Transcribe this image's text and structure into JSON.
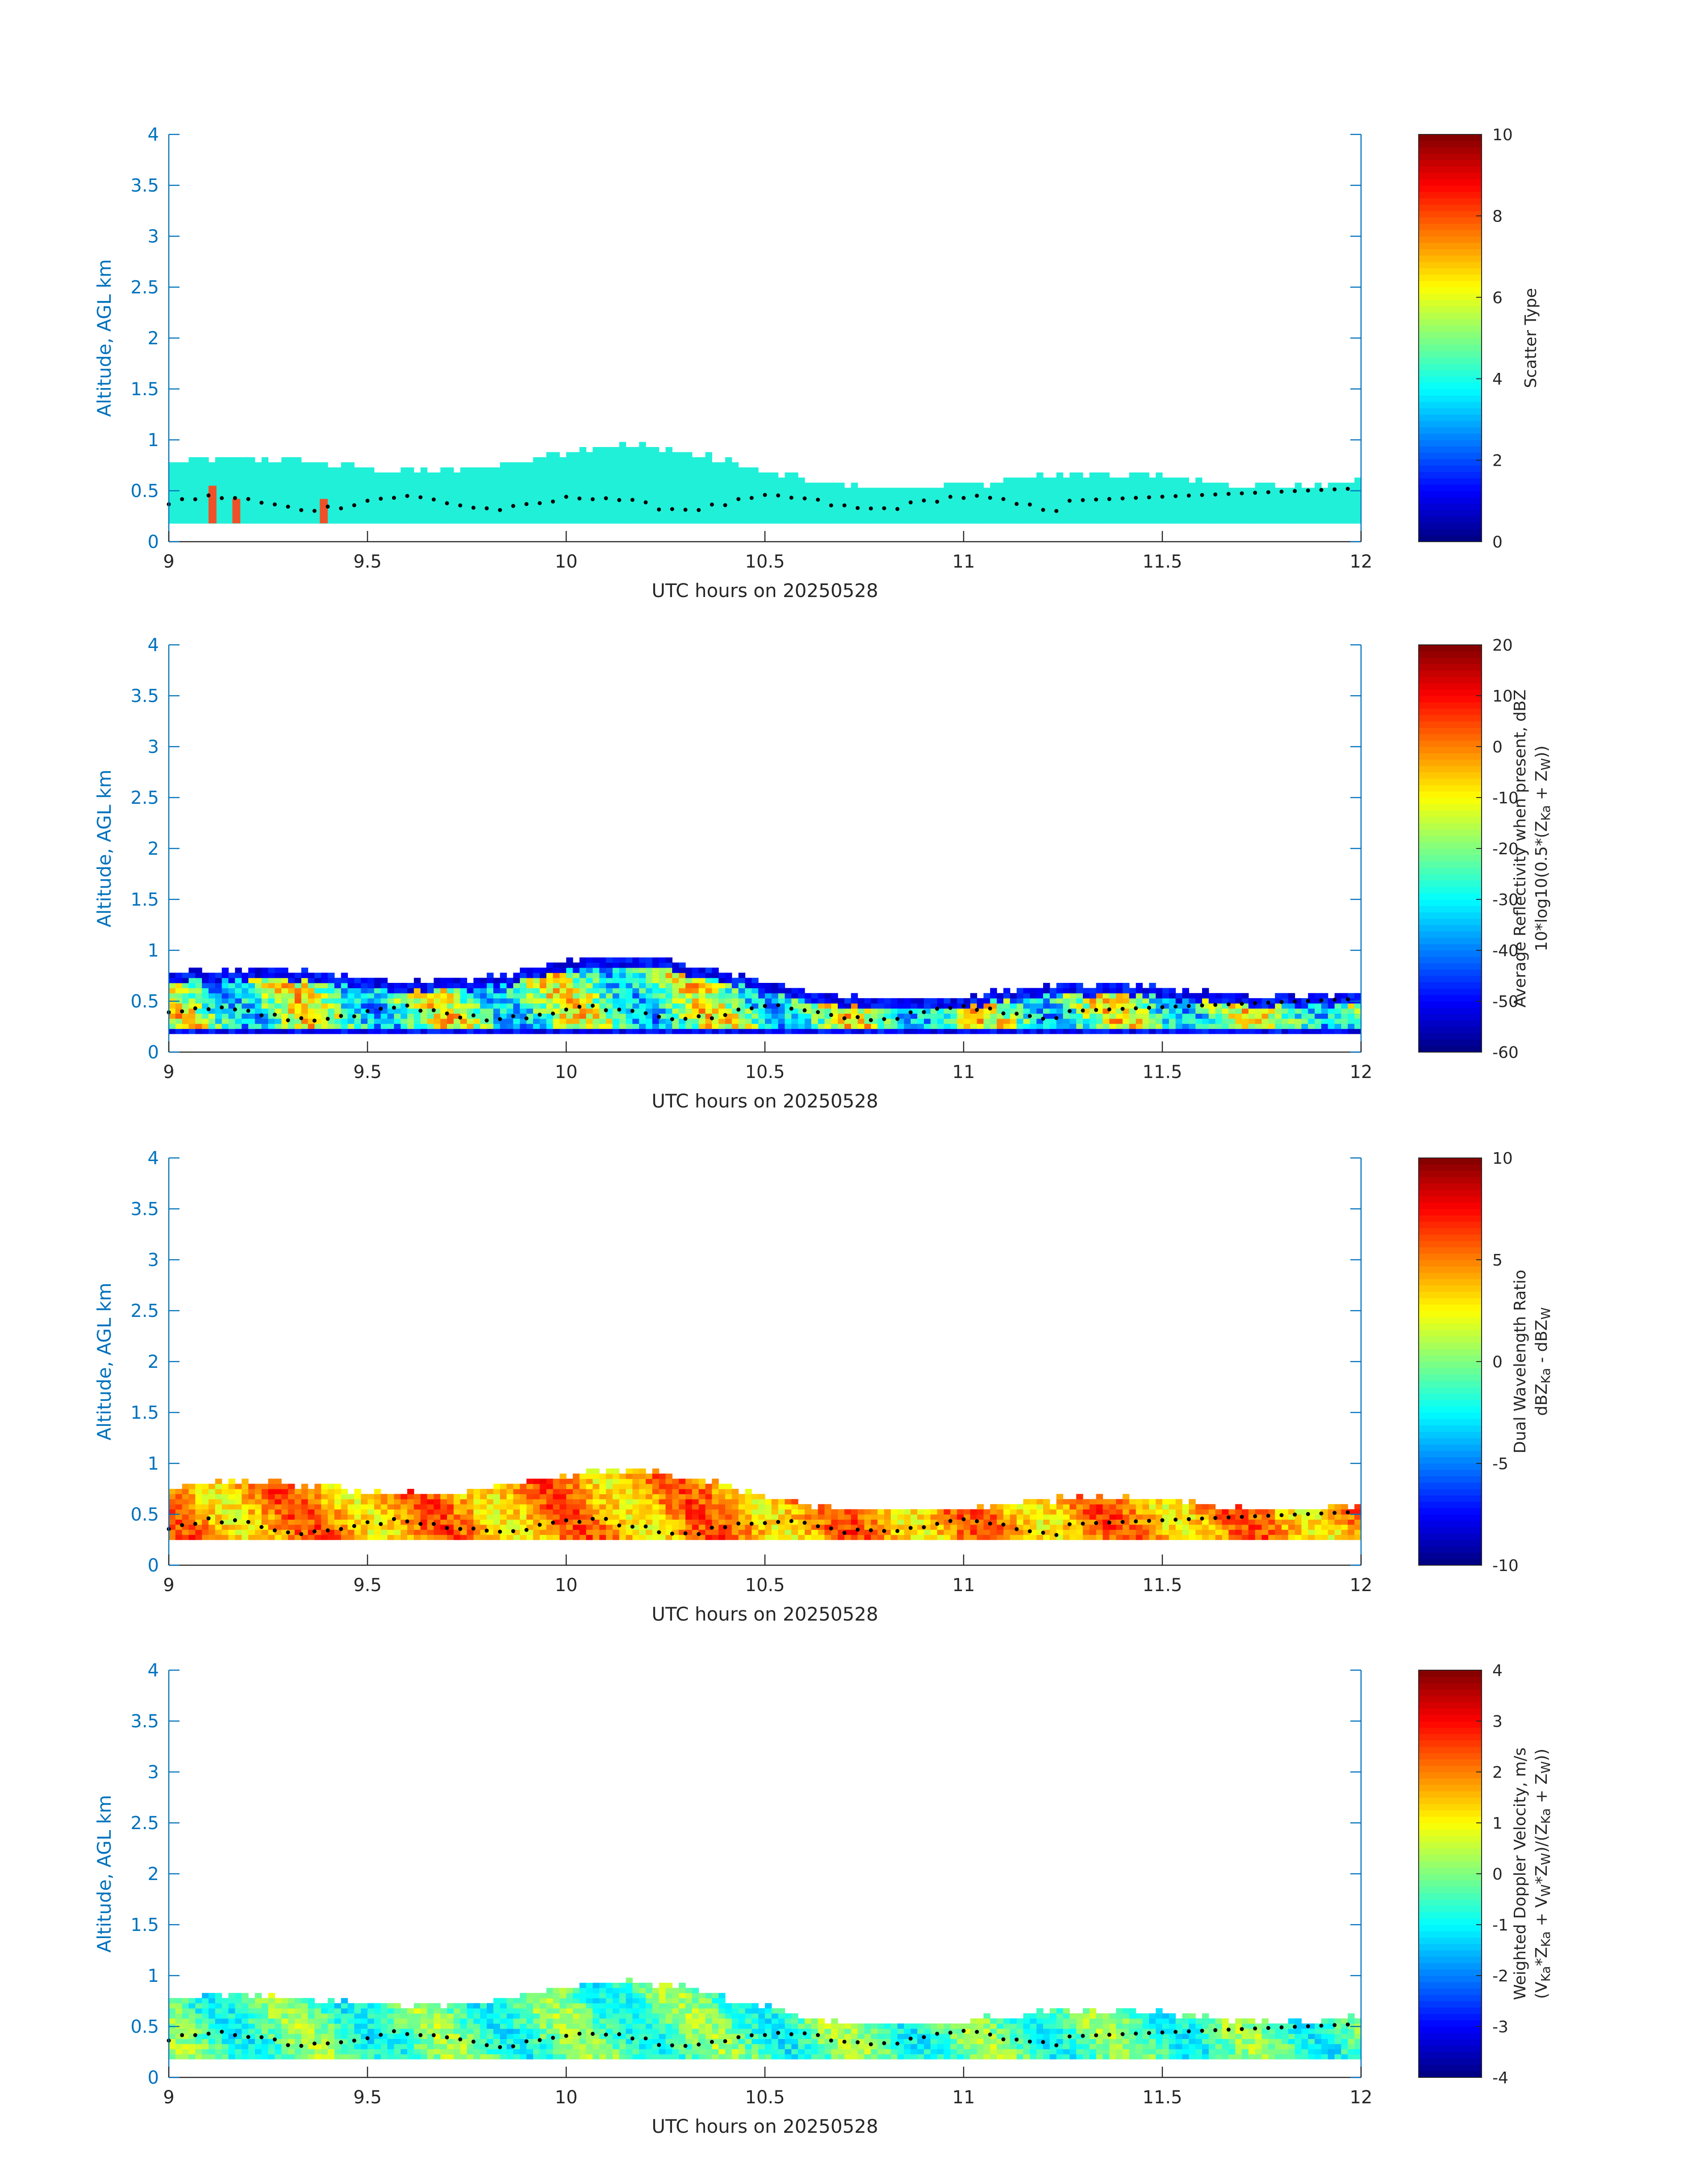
{
  "figure": {
    "panels": [
      {
        "id": "scatter-type",
        "ylabel": "Altitude, AGL km",
        "xlabel": "UTC hours on 20250528",
        "colorbar": {
          "label_lines": [
            [
              {
                "t": "Scatter Type"
              }
            ]
          ],
          "ticks": [
            "0",
            "2",
            "4",
            "6",
            "8",
            "10"
          ]
        }
      },
      {
        "id": "reflectivity",
        "ylabel": "Altitude, AGL km",
        "xlabel": "UTC hours on 20250528",
        "colorbar": {
          "label_lines": [
            [
              {
                "t": "Average Reflectivity when present, dBZ"
              }
            ],
            [
              {
                "t": "10*log10(0.5*(Z"
              },
              {
                "t": "Ka",
                "sub": true
              },
              {
                "t": " + Z"
              },
              {
                "t": "W",
                "sub": true
              },
              {
                "t": "))"
              }
            ]
          ],
          "ticks": [
            "-60",
            "-50",
            "-40",
            "-30",
            "-20",
            "-10",
            "0",
            "10",
            "20"
          ]
        }
      },
      {
        "id": "dwr",
        "ylabel": "Altitude, AGL km",
        "xlabel": "UTC hours on 20250528",
        "colorbar": {
          "label_lines": [
            [
              {
                "t": "Dual Wavelength Ratio"
              }
            ],
            [
              {
                "t": "dBZ"
              },
              {
                "t": "Ka",
                "sub": true
              },
              {
                "t": " - dBZ"
              },
              {
                "t": "W",
                "sub": true
              }
            ]
          ],
          "ticks": [
            "-10",
            "-5",
            "0",
            "5",
            "10"
          ]
        }
      },
      {
        "id": "doppler",
        "ylabel": "Altitude, AGL km",
        "xlabel": "UTC hours on 20250528",
        "colorbar": {
          "label_lines": [
            [
              {
                "t": "Weighted Doppler Velocity, m/s"
              }
            ],
            [
              {
                "t": "(V"
              },
              {
                "t": "Ka",
                "sub": true
              },
              {
                "t": "*Z"
              },
              {
                "t": "Ka",
                "sub": true
              },
              {
                "t": " + V"
              },
              {
                "t": "W",
                "sub": true
              },
              {
                "t": "*Z"
              },
              {
                "t": "W",
                "sub": true
              },
              {
                "t": ")/(Z"
              },
              {
                "t": "Ka",
                "sub": true
              },
              {
                "t": " + Z"
              },
              {
                "t": "W",
                "sub": true
              },
              {
                "t": "))"
              }
            ]
          ],
          "ticks": [
            "-4",
            "-3",
            "-2",
            "-1",
            "0",
            "1",
            "2",
            "3",
            "4"
          ]
        }
      }
    ]
  },
  "chart_data": [
    {
      "type": "heatmap",
      "field": "Scatter Type",
      "xlabel": "UTC hours on 20250528",
      "ylabel": "Altitude, AGL km",
      "xlim": [
        9,
        12
      ],
      "ylim": [
        0,
        4
      ],
      "xticks": [
        "9",
        "9.5",
        "10",
        "10.5",
        "11",
        "11.5",
        "12"
      ],
      "yticks": [
        "0",
        "0.5",
        "1",
        "1.5",
        "2",
        "2.5",
        "3",
        "3.5",
        "4"
      ],
      "colorbar": {
        "label": "Scatter Type",
        "range": [
          0,
          10
        ],
        "colormap": "jet"
      },
      "echo": {
        "base_km": 0.18,
        "top_km_range": [
          0.55,
          1.0
        ],
        "dominant_value": 4,
        "colors": {
          "dominant": "#20f0d8",
          "secondary": "#f05028"
        }
      },
      "overlay": {
        "type": "scatter",
        "color": "#000000",
        "y_range_km": [
          0.2,
          0.65
        ]
      }
    },
    {
      "type": "heatmap",
      "field": "Average Reflectivity when present, dBZ",
      "xlabel": "UTC hours on 20250528",
      "ylabel": "Altitude, AGL km",
      "xlim": [
        9,
        12
      ],
      "ylim": [
        0,
        4
      ],
      "xticks": [
        "9",
        "9.5",
        "10",
        "10.5",
        "11",
        "11.5",
        "12"
      ],
      "yticks": [
        "0",
        "0.5",
        "1",
        "1.5",
        "2",
        "2.5",
        "3",
        "3.5",
        "4"
      ],
      "colorbar": {
        "label": "Average Reflectivity when present, dBZ",
        "range": [
          -60,
          20
        ],
        "colormap": "jet"
      },
      "echo": {
        "base_km": 0.18,
        "top_km_range": [
          0.55,
          1.0
        ],
        "value_range": [
          -55,
          5
        ]
      },
      "overlay": {
        "type": "scatter",
        "color": "#000000",
        "y_range_km": [
          0.2,
          0.65
        ]
      }
    },
    {
      "type": "heatmap",
      "field": "Dual Wavelength Ratio",
      "xlabel": "UTC hours on 20250528",
      "ylabel": "Altitude, AGL km",
      "xlim": [
        9,
        12
      ],
      "ylim": [
        0,
        4
      ],
      "xticks": [
        "9",
        "9.5",
        "10",
        "10.5",
        "11",
        "11.5",
        "12"
      ],
      "yticks": [
        "0",
        "0.5",
        "1",
        "1.5",
        "2",
        "2.5",
        "3",
        "3.5",
        "4"
      ],
      "colorbar": {
        "label": "Dual Wavelength Ratio",
        "range": [
          -10,
          10
        ],
        "colormap": "jet"
      },
      "echo": {
        "base_km": 0.25,
        "top_km_range": [
          0.55,
          1.0
        ],
        "value_range": [
          0,
          8
        ]
      },
      "overlay": {
        "type": "scatter",
        "color": "#000000",
        "y_range_km": [
          0.2,
          0.65
        ]
      }
    },
    {
      "type": "heatmap",
      "field": "Weighted Doppler Velocity, m/s",
      "xlabel": "UTC hours on 20250528",
      "ylabel": "Altitude, AGL km",
      "xlim": [
        9,
        12
      ],
      "ylim": [
        0,
        4
      ],
      "xticks": [
        "9",
        "9.5",
        "10",
        "10.5",
        "11",
        "11.5",
        "12"
      ],
      "yticks": [
        "0",
        "0.5",
        "1",
        "1.5",
        "2",
        "2.5",
        "3",
        "3.5",
        "4"
      ],
      "colorbar": {
        "label": "Weighted Doppler Velocity, m/s",
        "range": [
          -4,
          4
        ],
        "colormap": "jet"
      },
      "echo": {
        "base_km": 0.18,
        "top_km_range": [
          0.55,
          1.0
        ],
        "value_range": [
          -2,
          1
        ]
      },
      "overlay": {
        "type": "scatter",
        "color": "#000000",
        "y_range_km": [
          0.2,
          0.65
        ]
      }
    }
  ]
}
